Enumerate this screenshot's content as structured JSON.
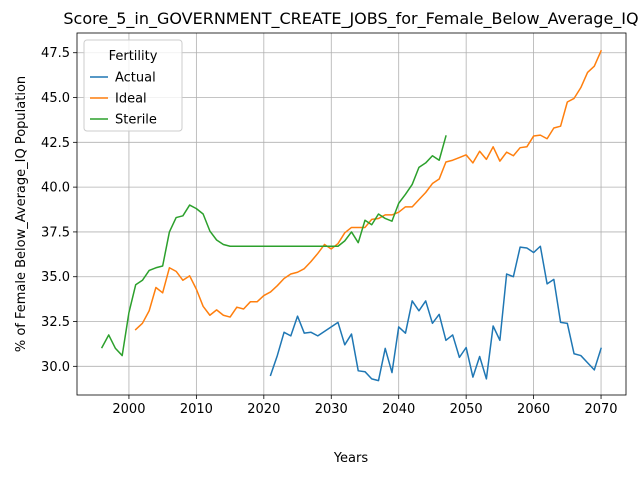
{
  "chart_data": {
    "type": "line",
    "title": "Score_5_in_GOVERNMENT_CREATE_JOBS_for_Female_Below_Average_IQ",
    "xlabel": "Years",
    "ylabel": "% of Female Below_Average_IQ Population",
    "xlim": [
      1992.3,
      2073.7
    ],
    "ylim": [
      28.4,
      48.6
    ],
    "xticks": [
      2000,
      2010,
      2020,
      2030,
      2040,
      2050,
      2060,
      2070
    ],
    "yticks": [
      30.0,
      32.5,
      35.0,
      37.5,
      40.0,
      42.5,
      45.0,
      47.5
    ],
    "ytick_labels": [
      "30.0",
      "32.5",
      "35.0",
      "37.5",
      "40.0",
      "42.5",
      "45.0",
      "47.5"
    ],
    "grid": true,
    "legend": {
      "title": "Fertility",
      "placement": "top-left"
    },
    "series": [
      {
        "name": "Actual",
        "color": "#1f77b4",
        "points": [
          [
            2021,
            29.5
          ],
          [
            2022,
            30.6
          ],
          [
            2023,
            31.9
          ],
          [
            2024,
            31.7
          ],
          [
            2025,
            32.8
          ],
          [
            2026,
            31.85
          ],
          [
            2027,
            31.9
          ],
          [
            2028,
            31.7
          ],
          [
            2029,
            31.95
          ],
          [
            2030,
            32.2
          ],
          [
            2031,
            32.45
          ],
          [
            2032,
            31.2
          ],
          [
            2033,
            31.8
          ],
          [
            2034,
            29.75
          ],
          [
            2035,
            29.7
          ],
          [
            2036,
            29.3
          ],
          [
            2037,
            29.2
          ],
          [
            2038,
            31.0
          ],
          [
            2039,
            29.65
          ],
          [
            2040,
            32.2
          ],
          [
            2041,
            31.85
          ],
          [
            2042,
            33.65
          ],
          [
            2043,
            33.1
          ],
          [
            2044,
            33.65
          ],
          [
            2045,
            32.4
          ],
          [
            2046,
            32.9
          ],
          [
            2047,
            31.45
          ],
          [
            2048,
            31.75
          ],
          [
            2049,
            30.5
          ],
          [
            2050,
            31.05
          ],
          [
            2051,
            29.4
          ],
          [
            2052,
            30.55
          ],
          [
            2053,
            29.3
          ],
          [
            2054,
            32.25
          ],
          [
            2055,
            31.45
          ],
          [
            2056,
            35.15
          ],
          [
            2057,
            35.0
          ],
          [
            2058,
            36.65
          ],
          [
            2059,
            36.6
          ],
          [
            2060,
            36.35
          ],
          [
            2061,
            36.7
          ],
          [
            2062,
            34.6
          ],
          [
            2063,
            34.85
          ],
          [
            2064,
            32.45
          ],
          [
            2065,
            32.4
          ],
          [
            2066,
            30.7
          ],
          [
            2067,
            30.6
          ],
          [
            2068,
            30.2
          ],
          [
            2069,
            29.8
          ],
          [
            2070,
            31.0
          ]
        ]
      },
      {
        "name": "Ideal",
        "color": "#ff7f0e",
        "points": [
          [
            2001,
            32.05
          ],
          [
            2002,
            32.4
          ],
          [
            2003,
            33.1
          ],
          [
            2004,
            34.4
          ],
          [
            2005,
            34.1
          ],
          [
            2006,
            35.5
          ],
          [
            2007,
            35.3
          ],
          [
            2008,
            34.8
          ],
          [
            2009,
            35.05
          ],
          [
            2010,
            34.3
          ],
          [
            2011,
            33.35
          ],
          [
            2012,
            32.85
          ],
          [
            2013,
            33.15
          ],
          [
            2014,
            32.85
          ],
          [
            2015,
            32.75
          ],
          [
            2016,
            33.3
          ],
          [
            2017,
            33.2
          ],
          [
            2018,
            33.6
          ],
          [
            2019,
            33.6
          ],
          [
            2020,
            33.95
          ],
          [
            2021,
            34.15
          ],
          [
            2022,
            34.5
          ],
          [
            2023,
            34.9
          ],
          [
            2024,
            35.15
          ],
          [
            2025,
            35.25
          ],
          [
            2026,
            35.45
          ],
          [
            2027,
            35.85
          ],
          [
            2028,
            36.3
          ],
          [
            2029,
            36.8
          ],
          [
            2030,
            36.55
          ],
          [
            2031,
            36.85
          ],
          [
            2032,
            37.45
          ],
          [
            2033,
            37.75
          ],
          [
            2034,
            37.75
          ],
          [
            2035,
            37.75
          ],
          [
            2036,
            38.2
          ],
          [
            2037,
            38.25
          ],
          [
            2038,
            38.45
          ],
          [
            2039,
            38.45
          ],
          [
            2040,
            38.6
          ],
          [
            2041,
            38.9
          ],
          [
            2042,
            38.9
          ],
          [
            2043,
            39.3
          ],
          [
            2044,
            39.7
          ],
          [
            2045,
            40.2
          ],
          [
            2046,
            40.45
          ],
          [
            2047,
            41.4
          ],
          [
            2048,
            41.5
          ],
          [
            2049,
            41.65
          ],
          [
            2050,
            41.8
          ],
          [
            2051,
            41.35
          ],
          [
            2052,
            42.0
          ],
          [
            2053,
            41.55
          ],
          [
            2054,
            42.25
          ],
          [
            2055,
            41.45
          ],
          [
            2056,
            41.95
          ],
          [
            2057,
            41.75
          ],
          [
            2058,
            42.2
          ],
          [
            2059,
            42.25
          ],
          [
            2060,
            42.85
          ],
          [
            2061,
            42.9
          ],
          [
            2062,
            42.7
          ],
          [
            2063,
            43.3
          ],
          [
            2064,
            43.4
          ],
          [
            2065,
            44.75
          ],
          [
            2066,
            44.95
          ],
          [
            2067,
            45.55
          ],
          [
            2068,
            46.4
          ],
          [
            2069,
            46.75
          ],
          [
            2070,
            47.6
          ]
        ]
      },
      {
        "name": "Sterile",
        "color": "#2ca02c",
        "points": [
          [
            1996,
            31.05
          ],
          [
            1997,
            31.75
          ],
          [
            1998,
            31.0
          ],
          [
            1999,
            30.6
          ],
          [
            2000,
            33.0
          ],
          [
            2001,
            34.55
          ],
          [
            2002,
            34.8
          ],
          [
            2003,
            35.35
          ],
          [
            2004,
            35.5
          ],
          [
            2005,
            35.6
          ],
          [
            2006,
            37.5
          ],
          [
            2007,
            38.3
          ],
          [
            2008,
            38.4
          ],
          [
            2009,
            39.0
          ],
          [
            2010,
            38.8
          ],
          [
            2011,
            38.5
          ],
          [
            2012,
            37.55
          ],
          [
            2013,
            37.05
          ],
          [
            2014,
            36.8
          ],
          [
            2015,
            36.7
          ],
          [
            2016,
            36.7
          ],
          [
            2017,
            36.7
          ],
          [
            2018,
            36.7
          ],
          [
            2019,
            36.7
          ],
          [
            2020,
            36.7
          ],
          [
            2021,
            36.7
          ],
          [
            2022,
            36.7
          ],
          [
            2023,
            36.7
          ],
          [
            2024,
            36.7
          ],
          [
            2025,
            36.7
          ],
          [
            2026,
            36.7
          ],
          [
            2027,
            36.7
          ],
          [
            2028,
            36.7
          ],
          [
            2029,
            36.7
          ],
          [
            2030,
            36.7
          ],
          [
            2031,
            36.7
          ],
          [
            2032,
            37.0
          ],
          [
            2033,
            37.5
          ],
          [
            2034,
            36.9
          ],
          [
            2035,
            38.15
          ],
          [
            2036,
            37.9
          ],
          [
            2037,
            38.5
          ],
          [
            2038,
            38.25
          ],
          [
            2039,
            38.1
          ],
          [
            2040,
            39.1
          ],
          [
            2041,
            39.6
          ],
          [
            2042,
            40.15
          ],
          [
            2043,
            41.1
          ],
          [
            2044,
            41.35
          ],
          [
            2045,
            41.75
          ],
          [
            2046,
            41.5
          ],
          [
            2047,
            42.85
          ]
        ]
      }
    ]
  }
}
